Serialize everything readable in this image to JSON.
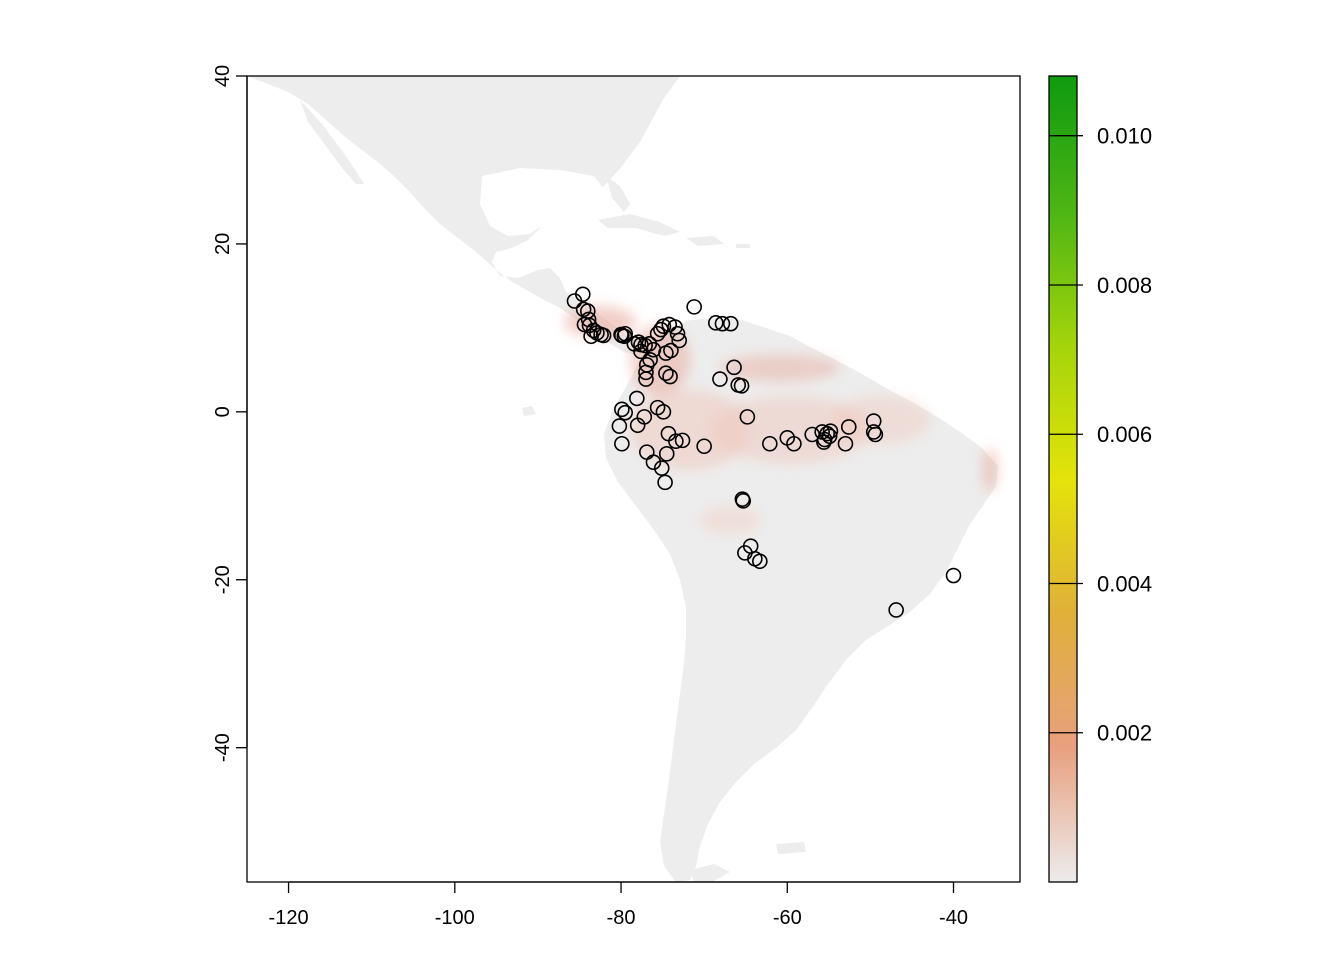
{
  "chart_data": {
    "type": "scatter",
    "title": "",
    "xlabel": "",
    "ylabel": "",
    "xlim": [
      -125,
      -32
    ],
    "ylim": [
      -56,
      40
    ],
    "x_ticks": [
      -120,
      -100,
      -80,
      -60,
      -40
    ],
    "x_tick_labels": [
      "-120",
      "-100",
      "-80",
      "-60",
      "-40"
    ],
    "y_ticks": [
      -40,
      -20,
      0,
      20,
      40
    ],
    "y_tick_labels": [
      "-40",
      "-20",
      "0",
      "20",
      "40"
    ],
    "legend": {
      "type": "continuous-colorbar",
      "placement": "right",
      "range": [
        0,
        0.0108
      ],
      "ticks": [
        0.002,
        0.004,
        0.006,
        0.008,
        0.01
      ],
      "tick_labels": [
        "0.002",
        "0.004",
        "0.006",
        "0.008",
        "0.010"
      ],
      "colors": [
        "#ececec",
        "#e8a07f",
        "#e0b03a",
        "#e4e30a",
        "#a3d40b",
        "#4db515",
        "#0f9a0f"
      ]
    },
    "raster_colors": {
      "background": "#ffffff",
      "land": "#ededed",
      "suitability_low": "#f2d5cc",
      "suitability_mid": "#e9a89a"
    },
    "grid": false,
    "series": [
      {
        "marker": "open-circle",
        "points": [
          [
            -85.6,
            13.2
          ],
          [
            -84.6,
            14.0
          ],
          [
            -84.5,
            12.2
          ],
          [
            -84.0,
            12.0
          ],
          [
            -83.9,
            11.0
          ],
          [
            -84.4,
            10.4
          ],
          [
            -83.8,
            10.3
          ],
          [
            -83.3,
            9.7
          ],
          [
            -83.6,
            9.0
          ],
          [
            -82.9,
            9.4
          ],
          [
            -82.4,
            9.2
          ],
          [
            -82.1,
            9.1
          ],
          [
            -80.0,
            9.2
          ],
          [
            -79.9,
            9.1
          ],
          [
            -79.6,
            9.0
          ],
          [
            -79.5,
            9.3
          ],
          [
            -78.4,
            8.1
          ],
          [
            -77.9,
            8.3
          ],
          [
            -77.6,
            8.0
          ],
          [
            -77.1,
            7.9
          ],
          [
            -76.6,
            8.1
          ],
          [
            -76.1,
            7.4
          ],
          [
            -77.6,
            7.2
          ],
          [
            -76.9,
            5.6
          ],
          [
            -77.0,
            4.7
          ],
          [
            -77.0,
            3.9
          ],
          [
            -76.5,
            6.2
          ],
          [
            -75.6,
            9.3
          ],
          [
            -75.2,
            9.8
          ],
          [
            -74.9,
            10.2
          ],
          [
            -74.2,
            10.4
          ],
          [
            -73.5,
            10.1
          ],
          [
            -73.0,
            8.5
          ],
          [
            -73.2,
            9.3
          ],
          [
            -74.0,
            7.3
          ],
          [
            -74.6,
            7.0
          ],
          [
            -74.6,
            4.6
          ],
          [
            -74.1,
            4.2
          ],
          [
            -71.2,
            12.5
          ],
          [
            -68.6,
            10.6
          ],
          [
            -67.8,
            10.5
          ],
          [
            -66.8,
            10.5
          ],
          [
            -78.1,
            1.6
          ],
          [
            -79.9,
            0.3
          ],
          [
            -79.5,
            -0.1
          ],
          [
            -80.2,
            -1.7
          ],
          [
            -78.0,
            -1.6
          ],
          [
            -77.2,
            -0.6
          ],
          [
            -75.6,
            0.5
          ],
          [
            -74.9,
            0.0
          ],
          [
            -79.9,
            -3.8
          ],
          [
            -76.9,
            -4.8
          ],
          [
            -75.1,
            -6.7
          ],
          [
            -76.1,
            -6.0
          ],
          [
            -74.7,
            -8.4
          ],
          [
            -74.5,
            -5.0
          ],
          [
            -74.3,
            -2.6
          ],
          [
            -73.4,
            -3.5
          ],
          [
            -72.6,
            -3.4
          ],
          [
            -70.0,
            -4.1
          ],
          [
            -68.1,
            3.9
          ],
          [
            -66.4,
            5.3
          ],
          [
            -65.9,
            3.2
          ],
          [
            -65.5,
            3.1
          ],
          [
            -64.8,
            -0.6
          ],
          [
            -62.1,
            -3.8
          ],
          [
            -60.0,
            -3.1
          ],
          [
            -59.2,
            -3.8
          ],
          [
            -57.0,
            -2.7
          ],
          [
            -55.8,
            -2.4
          ],
          [
            -55.5,
            -3.3
          ],
          [
            -55.2,
            -2.6
          ],
          [
            -54.9,
            -2.9
          ],
          [
            -55.6,
            -3.6
          ],
          [
            -54.8,
            -2.3
          ],
          [
            -52.6,
            -1.8
          ],
          [
            -53.0,
            -3.8
          ],
          [
            -49.6,
            -1.1
          ],
          [
            -49.6,
            -2.4
          ],
          [
            -49.4,
            -2.7
          ],
          [
            -65.4,
            -10.4
          ],
          [
            -65.3,
            -10.6
          ],
          [
            -64.4,
            -16.0
          ],
          [
            -65.1,
            -16.8
          ],
          [
            -63.9,
            -17.5
          ],
          [
            -63.3,
            -17.8
          ],
          [
            -40.0,
            -19.5
          ],
          [
            -46.9,
            -23.6
          ]
        ]
      }
    ]
  }
}
